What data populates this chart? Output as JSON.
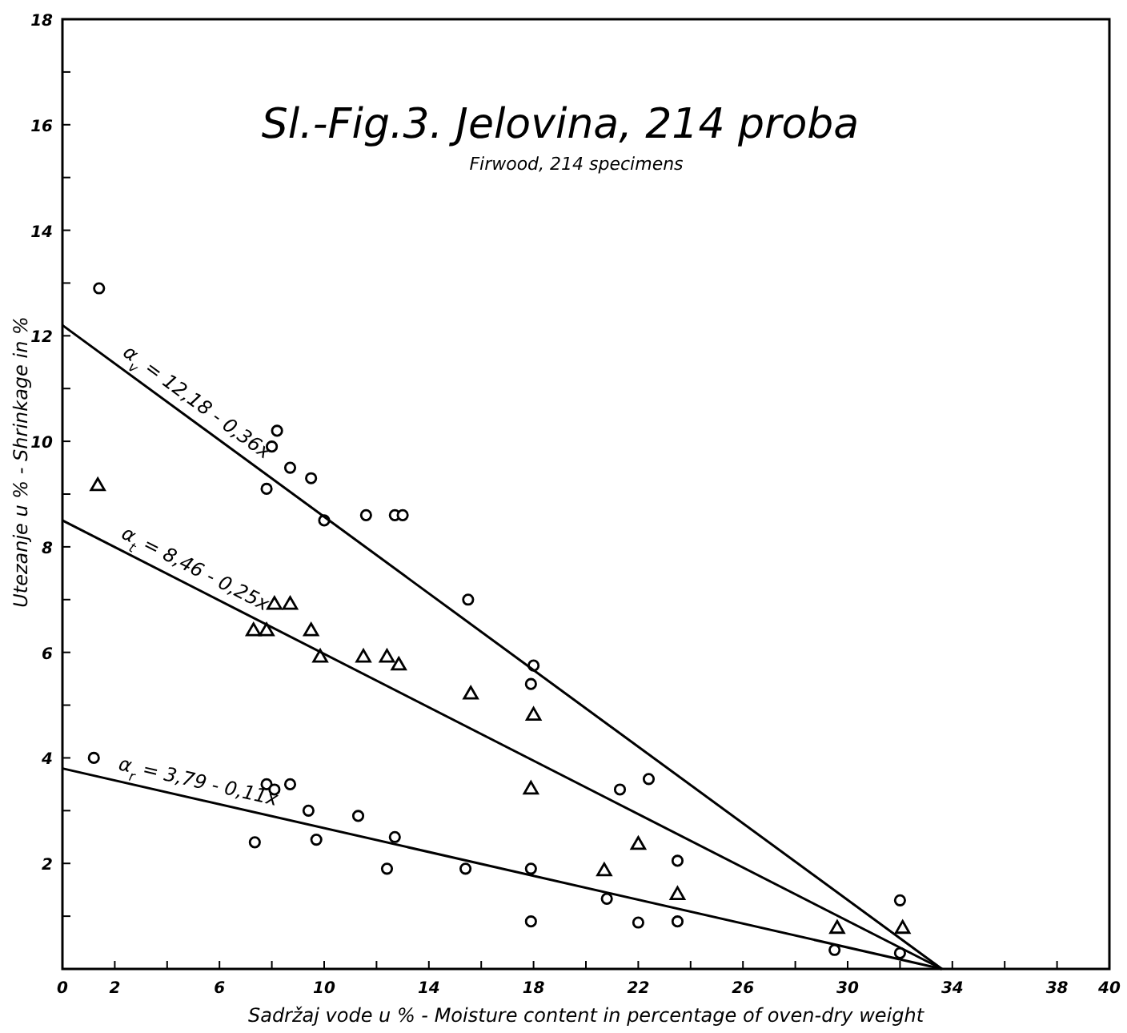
{
  "chart_data": {
    "type": "scatter",
    "title": "Sl.-Fig.3. Jelovina, 214 proba",
    "subtitle": "Firwood, 214 specimens",
    "xlabel": "Sadržaj vode u % - Moisture content in percentage of oven-dry weight",
    "ylabel": "Utezanje u % - Shrinkage in %",
    "xlim": [
      0,
      40
    ],
    "ylim": [
      0,
      18
    ],
    "xticks": [
      0,
      2,
      {
        "value": 4,
        "label": null
      },
      6,
      {
        "value": 8,
        "label": null
      },
      10,
      {
        "value": 12,
        "label": null
      },
      14,
      {
        "value": 16,
        "label": null
      },
      18,
      {
        "value": 20,
        "label": null
      },
      22,
      {
        "value": 24,
        "label": null
      },
      26,
      {
        "value": 28,
        "label": null
      },
      30,
      {
        "value": 32,
        "label": null
      },
      34,
      {
        "value": 36,
        "label": null
      },
      38,
      40
    ],
    "yticks": [
      {
        "value": 1,
        "label": null
      },
      2,
      {
        "value": 3,
        "label": null
      },
      4,
      {
        "value": 5,
        "label": null
      },
      6,
      {
        "value": 7,
        "label": null
      },
      8,
      {
        "value": 9,
        "label": null
      },
      10,
      {
        "value": 11,
        "label": null
      },
      12,
      {
        "value": 13,
        "label": null
      },
      14,
      {
        "value": 15,
        "label": null
      },
      16,
      {
        "value": 17,
        "label": null
      },
      18
    ],
    "grid": false,
    "legend": false,
    "series": [
      {
        "marker": "circle",
        "color": "#000000",
        "x": [
          1.4,
          8.2,
          8.0,
          8.7,
          9.5,
          7.8,
          10.0,
          11.6,
          12.7,
          13.0,
          15.5,
          18.0,
          17.9,
          21.3,
          22.4,
          23.5,
          32.0
        ],
        "values": [
          12.9,
          10.2,
          9.9,
          9.5,
          9.3,
          9.1,
          8.5,
          8.6,
          8.6,
          8.6,
          7.0,
          5.75,
          5.4,
          3.4,
          3.6,
          2.05,
          1.3
        ]
      },
      {
        "marker": "triangle",
        "color": "#000000",
        "x": [
          1.35,
          7.3,
          7.8,
          8.1,
          8.7,
          9.5,
          9.85,
          11.5,
          12.4,
          12.85,
          15.6,
          18.0,
          17.9,
          20.7,
          22.0,
          23.5,
          29.6,
          32.1
        ],
        "values": [
          9.15,
          6.4,
          6.4,
          6.9,
          6.9,
          6.4,
          5.9,
          5.9,
          5.9,
          5.75,
          5.2,
          4.8,
          3.4,
          1.85,
          2.35,
          1.4,
          0.76,
          0.76
        ]
      },
      {
        "marker": "circle",
        "color": "#000000",
        "x": [
          1.2,
          7.8,
          8.1,
          8.7,
          9.4,
          11.3,
          7.35,
          9.7,
          12.7,
          12.4,
          15.4,
          17.9,
          17.9,
          20.8,
          22.0,
          23.5,
          29.5,
          32.0
        ],
        "values": [
          4.0,
          3.5,
          3.4,
          3.5,
          3.0,
          2.9,
          2.4,
          2.45,
          2.5,
          1.9,
          1.9,
          1.9,
          0.9,
          1.33,
          0.88,
          0.9,
          0.36,
          0.3
        ]
      },
      {
        "type": "line",
        "name": "α$_{v}$ = 12,18 - 0,36x",
        "color": "#000000",
        "x": [
          0,
          33.6
        ],
        "values": [
          12.2,
          0
        ]
      },
      {
        "type": "line",
        "name": "α$_{t}$ = 8,46 - 0,25x",
        "color": "#000000",
        "x": [
          0,
          33.6
        ],
        "values": [
          8.5,
          0
        ]
      },
      {
        "type": "line",
        "name": "α$_{r}$ = 3,79 - 0,11x",
        "color": "#000000",
        "x": [
          0,
          33.6
        ],
        "values": [
          3.8,
          0
        ]
      }
    ]
  }
}
